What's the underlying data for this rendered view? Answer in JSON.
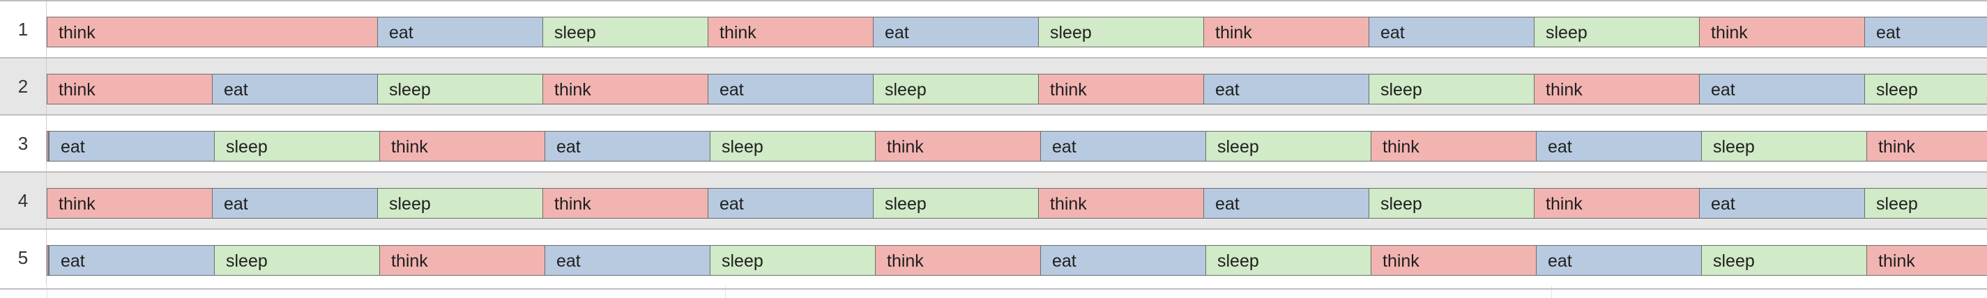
{
  "colors": {
    "think": "#f2b4b1",
    "eat": "#b7cae0",
    "sleep": "#d1eac7",
    "row_alt": "#e6e6e6"
  },
  "rows": [
    {
      "label": "1",
      "segments": [
        {
          "kind": "think",
          "label": "think",
          "units": 2
        },
        {
          "kind": "eat",
          "label": "eat",
          "units": 1
        },
        {
          "kind": "sleep",
          "label": "sleep",
          "units": 1
        },
        {
          "kind": "think",
          "label": "think",
          "units": 1
        },
        {
          "kind": "eat",
          "label": "eat",
          "units": 1
        },
        {
          "kind": "sleep",
          "label": "sleep",
          "units": 1
        },
        {
          "kind": "think",
          "label": "think",
          "units": 1
        },
        {
          "kind": "eat",
          "label": "eat",
          "units": 1
        },
        {
          "kind": "sleep",
          "label": "sleep",
          "units": 1
        },
        {
          "kind": "think",
          "label": "think",
          "units": 1
        },
        {
          "kind": "eat",
          "label": "eat",
          "units": 1
        }
      ]
    },
    {
      "label": "2",
      "segments": [
        {
          "kind": "think",
          "label": "think",
          "units": 1
        },
        {
          "kind": "eat",
          "label": "eat",
          "units": 1
        },
        {
          "kind": "sleep",
          "label": "sleep",
          "units": 1
        },
        {
          "kind": "think",
          "label": "think",
          "units": 1
        },
        {
          "kind": "eat",
          "label": "eat",
          "units": 1
        },
        {
          "kind": "sleep",
          "label": "sleep",
          "units": 1
        },
        {
          "kind": "think",
          "label": "think",
          "units": 1
        },
        {
          "kind": "eat",
          "label": "eat",
          "units": 1
        },
        {
          "kind": "sleep",
          "label": "sleep",
          "units": 1
        },
        {
          "kind": "think",
          "label": "think",
          "units": 1
        },
        {
          "kind": "eat",
          "label": "eat",
          "units": 1
        },
        {
          "kind": "sleep",
          "label": "sleep",
          "units": 1
        }
      ]
    },
    {
      "label": "3",
      "lead_sliver": true,
      "segments": [
        {
          "kind": "eat",
          "label": "eat",
          "units": 1
        },
        {
          "kind": "sleep",
          "label": "sleep",
          "units": 1
        },
        {
          "kind": "think",
          "label": "think",
          "units": 1
        },
        {
          "kind": "eat",
          "label": "eat",
          "units": 1
        },
        {
          "kind": "sleep",
          "label": "sleep",
          "units": 1
        },
        {
          "kind": "think",
          "label": "think",
          "units": 1
        },
        {
          "kind": "eat",
          "label": "eat",
          "units": 1
        },
        {
          "kind": "sleep",
          "label": "sleep",
          "units": 1
        },
        {
          "kind": "think",
          "label": "think",
          "units": 1
        },
        {
          "kind": "eat",
          "label": "eat",
          "units": 1
        },
        {
          "kind": "sleep",
          "label": "sleep",
          "units": 1
        },
        {
          "kind": "think",
          "label": "think",
          "units": 1
        }
      ]
    },
    {
      "label": "4",
      "segments": [
        {
          "kind": "think",
          "label": "think",
          "units": 1
        },
        {
          "kind": "eat",
          "label": "eat",
          "units": 1
        },
        {
          "kind": "sleep",
          "label": "sleep",
          "units": 1
        },
        {
          "kind": "think",
          "label": "think",
          "units": 1
        },
        {
          "kind": "eat",
          "label": "eat",
          "units": 1
        },
        {
          "kind": "sleep",
          "label": "sleep",
          "units": 1
        },
        {
          "kind": "think",
          "label": "think",
          "units": 1
        },
        {
          "kind": "eat",
          "label": "eat",
          "units": 1
        },
        {
          "kind": "sleep",
          "label": "sleep",
          "units": 1
        },
        {
          "kind": "think",
          "label": "think",
          "units": 1
        },
        {
          "kind": "eat",
          "label": "eat",
          "units": 1
        },
        {
          "kind": "sleep",
          "label": "sleep",
          "units": 1
        }
      ]
    },
    {
      "label": "5",
      "lead_sliver": true,
      "segments": [
        {
          "kind": "eat",
          "label": "eat",
          "units": 1
        },
        {
          "kind": "sleep",
          "label": "sleep",
          "units": 1
        },
        {
          "kind": "think",
          "label": "think",
          "units": 1
        },
        {
          "kind": "eat",
          "label": "eat",
          "units": 1
        },
        {
          "kind": "sleep",
          "label": "sleep",
          "units": 1
        },
        {
          "kind": "think",
          "label": "think",
          "units": 1
        },
        {
          "kind": "eat",
          "label": "eat",
          "units": 1
        },
        {
          "kind": "sleep",
          "label": "sleep",
          "units": 1
        },
        {
          "kind": "think",
          "label": "think",
          "units": 1
        },
        {
          "kind": "eat",
          "label": "eat",
          "units": 1
        },
        {
          "kind": "sleep",
          "label": "sleep",
          "units": 1
        },
        {
          "kind": "think",
          "label": "think",
          "units": 1
        }
      ]
    }
  ]
}
